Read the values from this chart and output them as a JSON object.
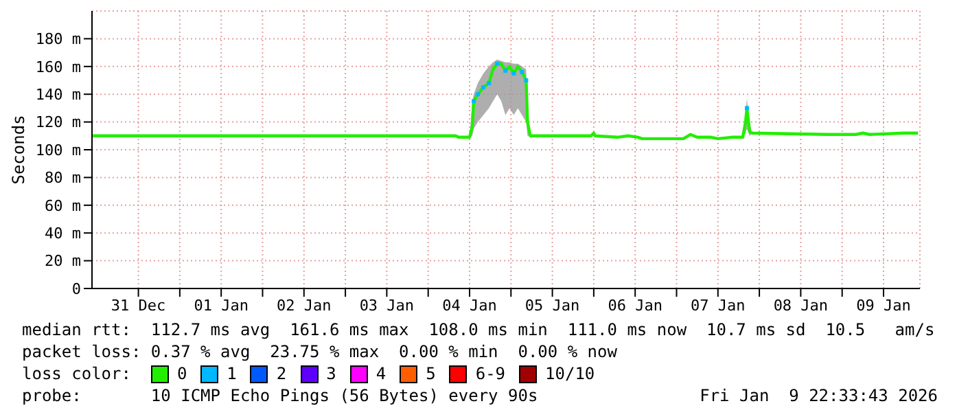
{
  "chart_data": {
    "type": "line",
    "ylabel": "Seconds",
    "legend_title": "loss color:",
    "legend": "bottom",
    "grid": true,
    "line_style": "solid",
    "xlim": [
      "2025-12-30T22:33",
      "2026-01-09T22:33"
    ],
    "xticks": [
      {
        "value": "2025-12-31T12:00",
        "label": "31 Dec"
      },
      {
        "value": "2026-01-01T00:00",
        "label": null
      },
      {
        "value": "2026-01-01T12:00",
        "label": "01 Jan"
      },
      {
        "value": "2026-01-02T00:00",
        "label": null
      },
      {
        "value": "2026-01-02T12:00",
        "label": "02 Jan"
      },
      {
        "value": "2026-01-03T00:00",
        "label": null
      },
      {
        "value": "2026-01-03T12:00",
        "label": "03 Jan"
      },
      {
        "value": "2026-01-04T00:00",
        "label": null
      },
      {
        "value": "2026-01-04T12:00",
        "label": "04 Jan"
      },
      {
        "value": "2026-01-05T00:00",
        "label": null
      },
      {
        "value": "2026-01-05T12:00",
        "label": "05 Jan"
      },
      {
        "value": "2026-01-06T00:00",
        "label": null
      },
      {
        "value": "2026-01-06T12:00",
        "label": "06 Jan"
      },
      {
        "value": "2026-01-07T00:00",
        "label": null
      },
      {
        "value": "2026-01-07T12:00",
        "label": "07 Jan"
      },
      {
        "value": "2026-01-08T00:00",
        "label": null
      },
      {
        "value": "2026-01-08T12:00",
        "label": "08 Jan"
      },
      {
        "value": "2026-01-09T00:00",
        "label": null
      },
      {
        "value": "2026-01-09T12:00",
        "label": "09 Jan"
      }
    ],
    "ylim": [
      0,
      200
    ],
    "yticks": [
      0,
      {
        "value": 20,
        "label": "20 m"
      },
      {
        "value": 40,
        "label": "40 m"
      },
      {
        "value": 60,
        "label": "60 m"
      },
      {
        "value": 80,
        "label": "80 m"
      },
      {
        "value": 100,
        "label": "100 m"
      },
      {
        "value": 120,
        "label": "120 m"
      },
      {
        "value": 140,
        "label": "140 m"
      },
      {
        "value": 160,
        "label": "160 m"
      },
      {
        "value": 180,
        "label": "180 m"
      }
    ],
    "series": [
      {
        "name": "0",
        "color": "#22ee00",
        "x": [
          "2025-12-30T22:48",
          "2026-01-04T08:00",
          "2026-01-04T08:48",
          "2026-01-04T12:00",
          "2026-01-04T12:48",
          "2026-01-04T13:12",
          "2026-01-04T14:24",
          "2026-01-04T16:00",
          "2026-01-04T17:36",
          "2026-01-04T18:48",
          "2026-01-04T20:00",
          "2026-01-04T21:12",
          "2026-01-04T22:24",
          "2026-01-04T23:36",
          "2026-01-05T00:48",
          "2026-01-05T02:00",
          "2026-01-05T03:12",
          "2026-01-05T04:24",
          "2026-01-05T04:48",
          "2026-01-05T05:36",
          "2026-01-05T23:12",
          "2026-01-06T00:00",
          "2026-01-06T00:24",
          "2026-01-06T06:48",
          "2026-01-06T10:00",
          "2026-01-06T12:48",
          "2026-01-06T14:00",
          "2026-01-06T18:00",
          "2026-01-07T02:00",
          "2026-01-07T04:00",
          "2026-01-07T06:00",
          "2026-01-07T10:00",
          "2026-01-07T12:00",
          "2026-01-07T16:00",
          "2026-01-07T19:12",
          "2026-01-07T20:00",
          "2026-01-07T20:24",
          "2026-01-07T21:12",
          "2026-01-07T22:00",
          "2026-01-08T20:00",
          "2026-01-09T04:00",
          "2026-01-09T06:00",
          "2026-01-09T08:00",
          "2026-01-09T18:00",
          "2026-01-09T22:00"
        ],
        "values": [
          110,
          110,
          109,
          109,
          117,
          135,
          140,
          145,
          148,
          158,
          162,
          162,
          157,
          160,
          155,
          160,
          156,
          150,
          120,
          110,
          110,
          112,
          110,
          109,
          110,
          109,
          108,
          108,
          108,
          111,
          109,
          109,
          108,
          109,
          109,
          120,
          130,
          113,
          112,
          111,
          111,
          112,
          111,
          112,
          112
        ],
        "lower": [
          110,
          110,
          109,
          109,
          110,
          115,
          120,
          125,
          130,
          135,
          140,
          135,
          125,
          130,
          125,
          130,
          125,
          120,
          110,
          110,
          110,
          112,
          110,
          109,
          110,
          109,
          108,
          108,
          108,
          111,
          109,
          109,
          108,
          109,
          109,
          112,
          115,
          110,
          112,
          111,
          111,
          112,
          111,
          112,
          112
        ],
        "upper": [
          110,
          110,
          109,
          109,
          135,
          140,
          148,
          155,
          160,
          163,
          165,
          164,
          163,
          163,
          162,
          162,
          160,
          158,
          130,
          110,
          110,
          112,
          110,
          109,
          110,
          109,
          108,
          108,
          108,
          111,
          109,
          109,
          108,
          109,
          109,
          125,
          137,
          118,
          112,
          111,
          111,
          112,
          111,
          112,
          112
        ]
      },
      {
        "name": "1",
        "type": "scatter",
        "marker": "square",
        "color": "#00b8ff",
        "x": [
          "2026-01-04T13:12",
          "2026-01-04T14:24",
          "2026-01-04T16:00",
          "2026-01-04T17:36",
          "2026-01-04T20:00",
          "2026-01-04T22:24",
          "2026-01-05T00:48",
          "2026-01-05T03:12",
          "2026-01-05T04:24",
          "2026-01-07T20:24"
        ],
        "values": [
          135,
          140,
          145,
          148,
          162,
          157,
          155,
          156,
          150,
          130
        ]
      },
      {
        "name": "2",
        "type": "scatter",
        "color": "#0059ff"
      },
      {
        "name": "3",
        "type": "scatter",
        "color": "#5e00ff"
      },
      {
        "name": "4",
        "type": "scatter",
        "color": "#ff00ff"
      },
      {
        "name": "5",
        "type": "scatter",
        "color": "#ff5e00"
      },
      {
        "name": "6-9",
        "type": "scatter",
        "color": "#ff0000"
      },
      {
        "name": "10/10",
        "type": "scatter",
        "color": "#a10000"
      }
    ],
    "annotations": [
      "median rtt:  112.7 ms avg  161.6 ms max  108.0 ms min  111.0 ms now  10.7 ms sd  10.5   am/s",
      "packet loss: 0.37 % avg  23.75 % max  0.00 % min  0.00 % now",
      "probe:       10 ICMP Echo Pings (56 Bytes) every 90s",
      "Fri Jan  9 22:33:43 2026"
    ]
  }
}
